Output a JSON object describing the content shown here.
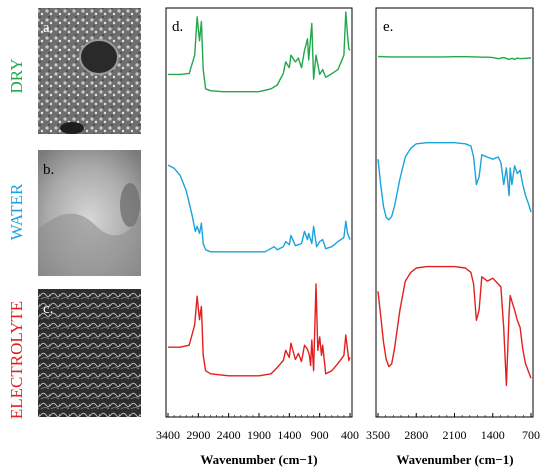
{
  "row_labels": [
    {
      "text": "DRY",
      "color": "#22a84a"
    },
    {
      "text": "WATER",
      "color": "#1aa3dd"
    },
    {
      "text": "ELECTROLYTE",
      "color": "#e2201f"
    }
  ],
  "micrograph_labels": [
    "a.",
    "b.",
    "c."
  ],
  "chart_data": [
    {
      "type": "line",
      "panel_label": "d.",
      "xlabel": "Wavenumber (cm−1)",
      "x_ticks": [
        "3400",
        "2900",
        "2400",
        "1900",
        "1400",
        "900",
        "400"
      ],
      "x_range": [
        3400,
        400
      ],
      "x_reversed": true,
      "y_ticks_shown": false,
      "stacked": true,
      "series": [
        {
          "color": "#22a84a",
          "x": [
            3400,
            3200,
            3050,
            2960,
            2920,
            2880,
            2850,
            2820,
            2780,
            2700,
            2500,
            2200,
            1900,
            1700,
            1600,
            1500,
            1460,
            1400,
            1375,
            1300,
            1250,
            1200,
            1150,
            1100,
            1080,
            1030,
            1000,
            960,
            900,
            850,
            800,
            720,
            600,
            500,
            470,
            440,
            420,
            400
          ],
          "y": [
            0.35,
            0.35,
            0.36,
            0.55,
            0.95,
            0.7,
            0.9,
            0.4,
            0.2,
            0.18,
            0.17,
            0.17,
            0.17,
            0.2,
            0.24,
            0.36,
            0.48,
            0.42,
            0.55,
            0.48,
            0.52,
            0.42,
            0.6,
            0.72,
            0.5,
            0.88,
            0.3,
            0.55,
            0.35,
            0.4,
            0.32,
            0.35,
            0.4,
            0.55,
            1.0,
            0.75,
            0.62,
            0.6
          ]
        },
        {
          "color": "#1aa3dd",
          "x": [
            3400,
            3300,
            3200,
            3100,
            3000,
            2950,
            2920,
            2880,
            2850,
            2820,
            2780,
            2700,
            2400,
            2100,
            1800,
            1650,
            1600,
            1500,
            1460,
            1400,
            1375,
            1300,
            1200,
            1150,
            1100,
            1080,
            1030,
            1000,
            950,
            900,
            850,
            800,
            700,
            600,
            500,
            470,
            440,
            400
          ],
          "y": [
            0.95,
            0.92,
            0.85,
            0.7,
            0.45,
            0.3,
            0.35,
            0.28,
            0.38,
            0.18,
            0.12,
            0.1,
            0.1,
            0.1,
            0.1,
            0.15,
            0.12,
            0.15,
            0.2,
            0.17,
            0.26,
            0.16,
            0.18,
            0.3,
            0.22,
            0.28,
            0.18,
            0.35,
            0.15,
            0.2,
            0.22,
            0.13,
            0.15,
            0.2,
            0.24,
            0.4,
            0.28,
            0.22
          ]
        },
        {
          "color": "#e2201f",
          "x": [
            3400,
            3300,
            3200,
            3050,
            2960,
            2920,
            2880,
            2850,
            2820,
            2780,
            2700,
            2400,
            2100,
            1900,
            1700,
            1600,
            1500,
            1460,
            1400,
            1375,
            1300,
            1250,
            1200,
            1150,
            1100,
            1070,
            1050,
            1030,
            1000,
            960,
            930,
            900,
            870,
            850,
            800,
            700,
            600,
            500,
            470,
            440,
            420,
            400
          ],
          "y": [
            0.38,
            0.38,
            0.38,
            0.4,
            0.6,
            0.88,
            0.65,
            0.78,
            0.3,
            0.15,
            0.12,
            0.1,
            0.1,
            0.1,
            0.12,
            0.18,
            0.25,
            0.35,
            0.28,
            0.42,
            0.26,
            0.32,
            0.24,
            0.4,
            0.36,
            0.3,
            0.2,
            0.45,
            0.15,
            1.0,
            0.35,
            0.48,
            0.3,
            0.4,
            0.12,
            0.15,
            0.22,
            0.3,
            0.5,
            0.35,
            0.25,
            0.28
          ]
        }
      ]
    },
    {
      "type": "line",
      "panel_label": "e.",
      "xlabel": "Wavenumber (cm−1)",
      "x_ticks": [
        "3500",
        "2800",
        "2100",
        "1400",
        "700"
      ],
      "x_range": [
        3500,
        700
      ],
      "x_reversed": true,
      "y_ticks_shown": false,
      "stacked": true,
      "series": [
        {
          "color": "#22a84a",
          "x": [
            3500,
            3300,
            3100,
            2900,
            2700,
            2500,
            2300,
            2100,
            1900,
            1700,
            1600,
            1500,
            1400,
            1300,
            1200,
            1100,
            1050,
            1000,
            950,
            900,
            800,
            700
          ],
          "y": [
            0.96,
            0.95,
            0.95,
            0.95,
            0.95,
            0.95,
            0.95,
            0.955,
            0.955,
            0.95,
            0.94,
            0.94,
            0.93,
            0.9,
            0.93,
            0.88,
            0.91,
            0.88,
            0.92,
            0.9,
            0.91,
            0.92
          ]
        },
        {
          "color": "#1aa3dd",
          "x": [
            3500,
            3450,
            3400,
            3350,
            3300,
            3250,
            3200,
            3100,
            3000,
            2900,
            2800,
            2600,
            2400,
            2100,
            1900,
            1800,
            1750,
            1700,
            1650,
            1600,
            1500,
            1400,
            1300,
            1250,
            1200,
            1150,
            1100,
            1080,
            1050,
            1000,
            950,
            900,
            850,
            800,
            750,
            700
          ],
          "y": [
            0.78,
            0.55,
            0.35,
            0.25,
            0.23,
            0.26,
            0.35,
            0.6,
            0.8,
            0.88,
            0.92,
            0.93,
            0.93,
            0.93,
            0.92,
            0.9,
            0.8,
            0.55,
            0.62,
            0.82,
            0.8,
            0.78,
            0.8,
            0.75,
            0.55,
            0.7,
            0.45,
            0.7,
            0.55,
            0.72,
            0.65,
            0.68,
            0.55,
            0.45,
            0.38,
            0.3
          ]
        },
        {
          "color": "#e2201f",
          "x": [
            3500,
            3450,
            3400,
            3350,
            3300,
            3250,
            3200,
            3100,
            3000,
            2900,
            2800,
            2600,
            2400,
            2100,
            1900,
            1800,
            1750,
            1700,
            1650,
            1600,
            1500,
            1400,
            1300,
            1250,
            1200,
            1150,
            1100,
            1080,
            1050,
            1000,
            950,
            900,
            850,
            800,
            750,
            700
          ],
          "y": [
            0.75,
            0.58,
            0.4,
            0.28,
            0.23,
            0.25,
            0.35,
            0.62,
            0.82,
            0.88,
            0.91,
            0.92,
            0.92,
            0.92,
            0.91,
            0.88,
            0.8,
            0.55,
            0.62,
            0.85,
            0.82,
            0.84,
            0.8,
            0.78,
            0.5,
            0.1,
            0.6,
            0.72,
            0.68,
            0.62,
            0.55,
            0.5,
            0.35,
            0.25,
            0.2,
            0.15
          ]
        }
      ]
    }
  ]
}
